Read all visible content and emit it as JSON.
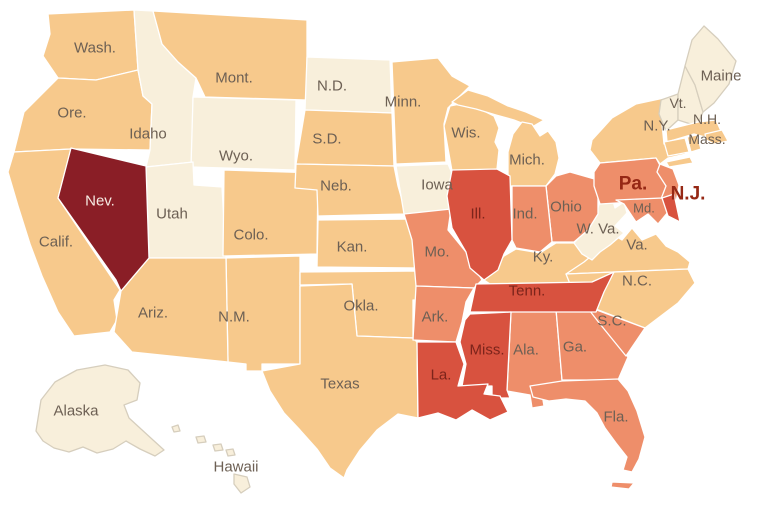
{
  "map": {
    "type": "us-states-choropleth",
    "background": "#ffffff",
    "palette": {
      "lowest": "#f8efdb",
      "low": "#f7c98c",
      "mid": "#ee8e6a",
      "high": "#d8523f",
      "highest": "#8a1e26"
    },
    "border_color": "#ffffff",
    "coast_outline_color": "#d6cebd",
    "label_colors": {
      "default": "#6d6054",
      "on_high": "#7c241b",
      "on_highest": "#f6ebe3",
      "highlight": "#962815"
    },
    "states": [
      {
        "id": "WA",
        "label": "Wash.",
        "category": "low",
        "label_style": "default"
      },
      {
        "id": "OR",
        "label": "Ore.",
        "category": "low",
        "label_style": "default"
      },
      {
        "id": "CA",
        "label": "Calif.",
        "category": "low",
        "label_style": "default"
      },
      {
        "id": "ID",
        "label": "Idaho",
        "category": "lowest",
        "label_style": "default"
      },
      {
        "id": "MT",
        "label": "Mont.",
        "category": "low",
        "label_style": "default"
      },
      {
        "id": "WY",
        "label": "Wyo.",
        "category": "lowest",
        "label_style": "default"
      },
      {
        "id": "UT",
        "label": "Utah",
        "category": "lowest",
        "label_style": "default"
      },
      {
        "id": "CO",
        "label": "Colo.",
        "category": "low",
        "label_style": "default"
      },
      {
        "id": "NM",
        "label": "N.M.",
        "category": "low",
        "label_style": "default"
      },
      {
        "id": "AZ",
        "label": "Ariz.",
        "category": "low",
        "label_style": "default"
      },
      {
        "id": "ND",
        "label": "N.D.",
        "category": "lowest",
        "label_style": "default"
      },
      {
        "id": "SD",
        "label": "S.D.",
        "category": "low",
        "label_style": "default"
      },
      {
        "id": "NE",
        "label": "Neb.",
        "category": "low",
        "label_style": "default"
      },
      {
        "id": "KS",
        "label": "Kan.",
        "category": "low",
        "label_style": "default"
      },
      {
        "id": "OK",
        "label": "Okla.",
        "category": "low",
        "label_style": "default"
      },
      {
        "id": "TX",
        "label": "Texas",
        "category": "low",
        "label_style": "default"
      },
      {
        "id": "MN",
        "label": "Minn.",
        "category": "low",
        "label_style": "default"
      },
      {
        "id": "IA",
        "label": "Iowa",
        "category": "lowest",
        "label_style": "default"
      },
      {
        "id": "WI",
        "label": "Wis.",
        "category": "low",
        "label_style": "default"
      },
      {
        "id": "MI",
        "label": "Mich.",
        "category": "low",
        "label_style": "default"
      },
      {
        "id": "NY",
        "label": "N.Y.",
        "category": "low",
        "label_style": "default"
      },
      {
        "id": "VT",
        "label": "Vt.",
        "category": "lowest",
        "label_style": "mid"
      },
      {
        "id": "NH",
        "label": "N.H.",
        "category": "lowest",
        "label_style": "mid"
      },
      {
        "id": "ME",
        "label": "Maine",
        "category": "lowest",
        "label_style": "default"
      },
      {
        "id": "MA",
        "label": "Mass.",
        "category": "low",
        "label_style": "mid"
      },
      {
        "id": "CT",
        "label": "",
        "category": "low",
        "label_style": "default"
      },
      {
        "id": "RI",
        "label": "",
        "category": "low",
        "label_style": "default"
      },
      {
        "id": "KY",
        "label": "Ky.",
        "category": "low",
        "label_style": "default"
      },
      {
        "id": "VA",
        "label": "Va.",
        "category": "low",
        "label_style": "default"
      },
      {
        "id": "NC",
        "label": "N.C.",
        "category": "low",
        "label_style": "default"
      },
      {
        "id": "WV",
        "label": "W. Va.",
        "category": "lowest",
        "label_style": "default"
      },
      {
        "id": "MO",
        "label": "Mo.",
        "category": "mid",
        "label_style": "default"
      },
      {
        "id": "AR",
        "label": "Ark.",
        "category": "mid",
        "label_style": "default"
      },
      {
        "id": "AL",
        "label": "Ala.",
        "category": "mid",
        "label_style": "default"
      },
      {
        "id": "GA",
        "label": "Ga.",
        "category": "mid",
        "label_style": "default"
      },
      {
        "id": "SC",
        "label": "S.C.",
        "category": "mid",
        "label_style": "default"
      },
      {
        "id": "FL",
        "label": "Fla.",
        "category": "mid",
        "label_style": "default"
      },
      {
        "id": "OH",
        "label": "Ohio",
        "category": "mid",
        "label_style": "default"
      },
      {
        "id": "IN",
        "label": "Ind.",
        "category": "mid",
        "label_style": "default"
      },
      {
        "id": "PA",
        "label": "Pa.",
        "category": "mid",
        "label_style": "highlight"
      },
      {
        "id": "NJ",
        "label": "N.J.",
        "category": "mid",
        "label_style": "highlight"
      },
      {
        "id": "MD",
        "label": "Md.",
        "category": "mid",
        "label_style": "small"
      },
      {
        "id": "DE",
        "label": "",
        "category": "high",
        "label_style": "default"
      },
      {
        "id": "IL",
        "label": "Ill.",
        "category": "high",
        "label_style": "dark"
      },
      {
        "id": "TN",
        "label": "Tenn.",
        "category": "high",
        "label_style": "dark"
      },
      {
        "id": "MS",
        "label": "Miss.",
        "category": "high",
        "label_style": "dark"
      },
      {
        "id": "LA",
        "label": "La.",
        "category": "high",
        "label_style": "dark"
      },
      {
        "id": "NV",
        "label": "Nev.",
        "category": "highest",
        "label_style": "light"
      },
      {
        "id": "AK",
        "label": "Alaska",
        "category": "lowest",
        "label_style": "default"
      },
      {
        "id": "HI",
        "label": "Hawaii",
        "category": "lowest",
        "label_style": "default"
      }
    ]
  }
}
